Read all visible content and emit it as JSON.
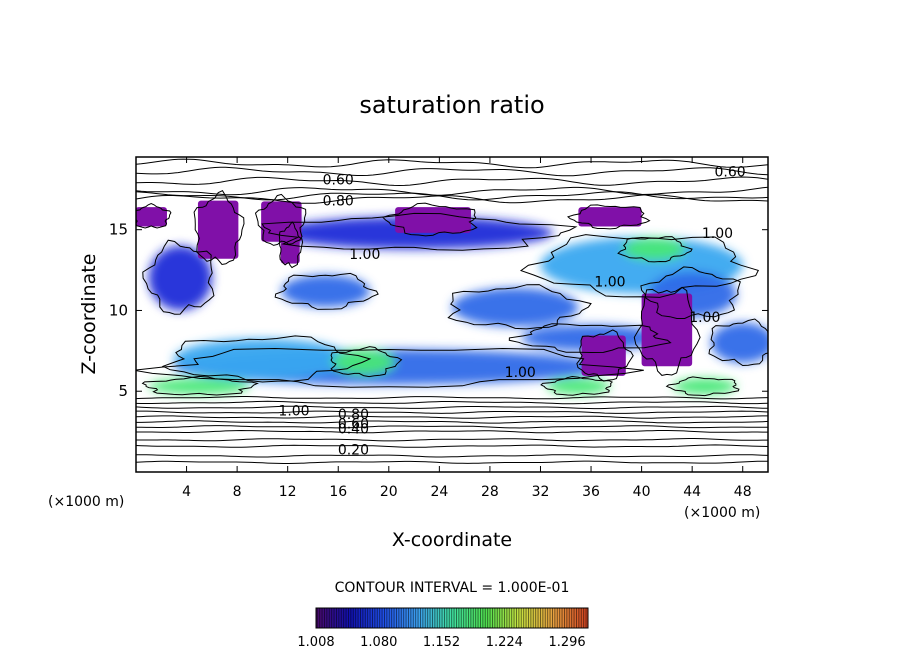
{
  "chart_data": {
    "type": "heatmap",
    "title": "saturation ratio",
    "xlabel": "X-coordinate",
    "ylabel": "Z-coordinate",
    "x_unit": "(×1000 m)",
    "z_unit": "(×1000 m)",
    "xlim": [
      0,
      50
    ],
    "ylim": [
      0,
      19.5
    ],
    "x_ticks": [
      "4",
      "8",
      "12",
      "16",
      "20",
      "24",
      "28",
      "32",
      "36",
      "40",
      "44",
      "48"
    ],
    "y_ticks": [
      "5",
      "10",
      "15"
    ],
    "contour_interval_text": "CONTOUR INTERVAL = 1.000E-01",
    "contour_labels": [
      {
        "text": "0.60",
        "x": 16,
        "z": 18.1
      },
      {
        "text": "0.80",
        "x": 16,
        "z": 16.8
      },
      {
        "text": "0.60",
        "x": 47,
        "z": 18.6
      },
      {
        "text": "1.00",
        "x": 46,
        "z": 14.8
      },
      {
        "text": "1.00",
        "x": 37.5,
        "z": 11.8
      },
      {
        "text": "1.00",
        "x": 45,
        "z": 9.6
      },
      {
        "text": "1.00",
        "x": 12.5,
        "z": 3.8
      },
      {
        "text": "0.80",
        "x": 17.2,
        "z": 3.6
      },
      {
        "text": "0.60",
        "x": 17.2,
        "z": 3.0
      },
      {
        "text": "0.40",
        "x": 17.2,
        "z": 2.7
      },
      {
        "text": "0.20",
        "x": 17.2,
        "z": 1.4
      },
      {
        "text": "1.00",
        "x": 30.4,
        "z": 6.2
      },
      {
        "text": "1.00",
        "x": 18.1,
        "z": 13.5
      }
    ],
    "colorbar": {
      "ticks": [
        "1.008",
        "1.080",
        "1.152",
        "1.224",
        "1.296"
      ],
      "range": [
        1.008,
        1.32
      ],
      "colors": [
        "#4a0a6a",
        "#1010b0",
        "#2050e8",
        "#3ca0f0",
        "#40e0a0",
        "#50e050",
        "#c8e040",
        "#e8a040",
        "#d04020"
      ]
    },
    "fill_colors": {
      "violet": "#8010a8",
      "blue": "#1a2ad8",
      "mid_blue": "#2e6ae8",
      "light_blue": "#38a8f0",
      "cyan": "#30d8c8",
      "green": "#48e878"
    },
    "supersaturated_regions": [
      {
        "x": 20,
        "z": 6.5,
        "w": 34,
        "h": 2.2,
        "level": 1.05
      },
      {
        "x": 10,
        "z": 7.0,
        "w": 14,
        "h": 2.5,
        "level": 1.1
      },
      {
        "x": 18,
        "z": 6.8,
        "w": 5,
        "h": 1.6,
        "level": 1.2
      },
      {
        "x": 5,
        "z": 5.3,
        "w": 8,
        "h": 1.0,
        "level": 1.2
      },
      {
        "x": 35,
        "z": 5.3,
        "w": 5,
        "h": 1.0,
        "level": 1.2
      },
      {
        "x": 45,
        "z": 5.3,
        "w": 5,
        "h": 1.0,
        "level": 1.2
      },
      {
        "x": 40,
        "z": 12.8,
        "w": 16,
        "h": 3.5,
        "level": 1.08
      },
      {
        "x": 41,
        "z": 13.8,
        "w": 5,
        "h": 1.4,
        "level": 1.18
      },
      {
        "x": 30,
        "z": 10.2,
        "w": 10,
        "h": 2.4,
        "level": 1.05
      },
      {
        "x": 22,
        "z": 14.8,
        "w": 22,
        "h": 2.0,
        "level": 1.03
      },
      {
        "x": 44,
        "z": 11.0,
        "w": 7,
        "h": 2.8,
        "level": 1.06
      },
      {
        "x": 3.5,
        "z": 12.0,
        "w": 5,
        "h": 4,
        "level": 1.03
      },
      {
        "x": 36,
        "z": 8.3,
        "w": 11,
        "h": 1.6,
        "level": 1.04
      },
      {
        "x": 15,
        "z": 11.2,
        "w": 7,
        "h": 2.0,
        "level": 1.04
      },
      {
        "x": 48,
        "z": 8.0,
        "w": 5,
        "h": 2.5,
        "level": 1.04
      }
    ],
    "violet_regions": [
      {
        "x": 6.5,
        "z": 15.0,
        "w": 3.2,
        "h": 3.6
      },
      {
        "x": 11.5,
        "z": 15.5,
        "w": 3.2,
        "h": 2.5
      },
      {
        "x": 23.5,
        "z": 15.6,
        "w": 6,
        "h": 1.6
      },
      {
        "x": 37.5,
        "z": 15.8,
        "w": 5,
        "h": 1.2
      },
      {
        "x": 42,
        "z": 8.8,
        "w": 4,
        "h": 4.5
      },
      {
        "x": 37,
        "z": 7.2,
        "w": 3.5,
        "h": 2.5
      },
      {
        "x": 12.2,
        "z": 14.0,
        "w": 1.5,
        "h": 2.2
      },
      {
        "x": 1.2,
        "z": 15.8,
        "w": 2.5,
        "h": 1.2
      }
    ]
  }
}
